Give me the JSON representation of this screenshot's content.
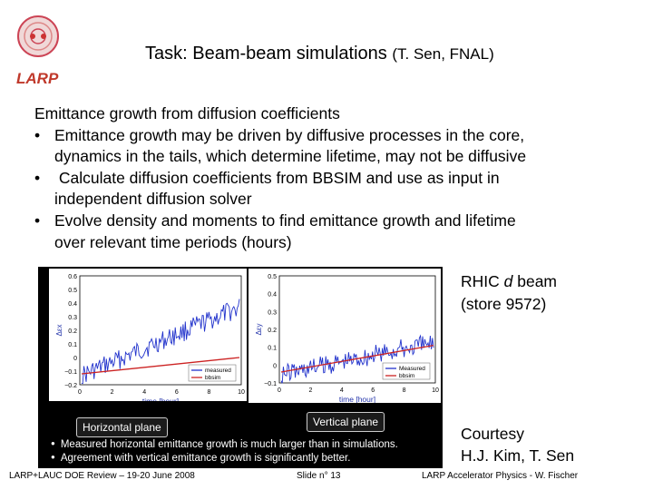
{
  "logo": {
    "text": "LARP",
    "icon": "larp-logo-icon",
    "color": "#c0392b"
  },
  "title": {
    "main": "Task: Beam-beam simulations",
    "author": "(T. Sen, FNAL)"
  },
  "body": {
    "heading": "Emittance growth from diffusion coefficients",
    "bullets": [
      [
        "Emittance growth may be driven by diffusive processes in the core,",
        "dynamics in the tails, which determine lifetime, may not be diffusive"
      ],
      [
        " Calculate diffusion coefficients from BBSIM and use as input in",
        "independent diffusion solver"
      ],
      [
        "Evolve density and moments to find emittance growth and lifetime",
        "over relevant time periods (hours)"
      ]
    ]
  },
  "figure": {
    "horizontal": {
      "tag": "Horizontal plane",
      "xlabel": "time [hour]",
      "ylabel": "Δεx",
      "xticks": [
        "0",
        "2",
        "4",
        "6",
        "8",
        "10"
      ],
      "yticks": [
        "0.6",
        "0.5",
        "0.4",
        "0.3",
        "0.2",
        "0.1",
        "0",
        "−0.1",
        "−0.2"
      ],
      "legend": [
        "measured",
        "bbsim"
      ]
    },
    "vertical": {
      "tag": "Vertical plane",
      "xlabel": "time [hour]",
      "ylabel": "Δεy",
      "xticks": [
        "0",
        "2",
        "4",
        "6",
        "8",
        "10"
      ],
      "yticks": [
        "0.5",
        "0.4",
        "0.3",
        "0.2",
        "0.1",
        "0",
        "−0.1"
      ],
      "legend": [
        "Measured",
        "bbsim"
      ]
    },
    "notes": [
      "Measured horizontal emittance growth is much larger than in simulations.",
      "Agreement with vertical emittance growth is significantly better."
    ],
    "colors": {
      "measured": "#2233cc",
      "bbsim": "#cc2222"
    }
  },
  "rhic": {
    "line1_pre": "RHIC ",
    "line1_em": "d",
    "line1_post": " beam",
    "line2": "(store 9572)"
  },
  "courtesy": {
    "line1": "Courtesy",
    "line2": "H.J. Kim, T. Sen"
  },
  "footer": {
    "left": "LARP+LAUC DOE Review – 19-20 June 2008",
    "center": "Slide n° 13",
    "right": "LARP Accelerator Physics -  W. Fischer"
  }
}
